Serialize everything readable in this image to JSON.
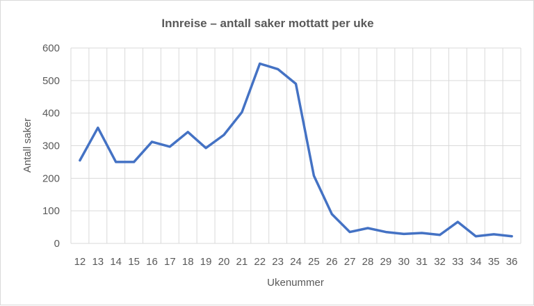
{
  "chart_data": {
    "type": "line",
    "title": "Innreise – antall saker mottatt per uke",
    "xlabel": "Ukenummer",
    "ylabel": "Antall saker",
    "ylim": [
      0,
      600
    ],
    "yticks": [
      0,
      100,
      200,
      300,
      400,
      500,
      600
    ],
    "grid": true,
    "legend": "none",
    "categories": [
      "12",
      "13",
      "14",
      "15",
      "16",
      "17",
      "18",
      "19",
      "20",
      "21",
      "22",
      "23",
      "24",
      "25",
      "26",
      "27",
      "28",
      "29",
      "30",
      "31",
      "32",
      "33",
      "34",
      "35",
      "36"
    ],
    "series": [
      {
        "color": "#4472c4",
        "values": [
          255,
          355,
          250,
          250,
          312,
          297,
          342,
          293,
          333,
          403,
          552,
          535,
          490,
          208,
          90,
          35,
          47,
          35,
          29,
          32,
          26,
          66,
          22,
          28,
          22
        ]
      }
    ]
  }
}
